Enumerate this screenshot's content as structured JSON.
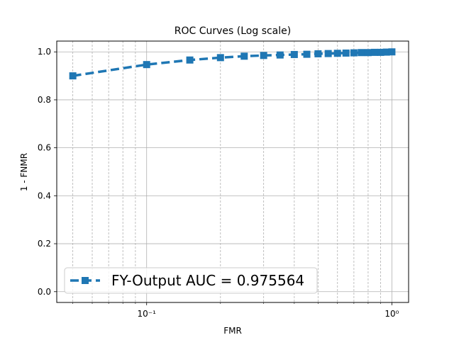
{
  "chart_data": {
    "type": "line",
    "title": "ROC Curves (Log scale)",
    "xlabel": "FMR",
    "ylabel": "1 - FNMR",
    "xscale": "log",
    "xlim": [
      0.043,
      1.17
    ],
    "ylim": [
      -0.045,
      1.045
    ],
    "yticks": [
      0.0,
      0.2,
      0.4,
      0.6,
      0.8,
      1.0
    ],
    "ytick_labels": [
      "0.0",
      "0.2",
      "0.4",
      "0.6",
      "0.8",
      "1.0"
    ],
    "xticks_major": [
      0.1,
      1
    ],
    "xtick_labels": [
      "10⁻¹",
      "10⁰"
    ],
    "xticks_minor": [
      0.05,
      0.06,
      0.07,
      0.08,
      0.09,
      0.2,
      0.3,
      0.4,
      0.5,
      0.6,
      0.7,
      0.8,
      0.9
    ],
    "grid": "on (dashed minor x-grid)",
    "legend_location": "lower-left",
    "series": [
      {
        "name": "FY-Output AUC = 0.975564",
        "color": "#1f77b4",
        "line_style": "dashed",
        "marker": "square",
        "x": [
          0.05,
          0.1,
          0.15,
          0.2,
          0.25,
          0.3,
          0.35,
          0.4,
          0.45,
          0.5,
          0.55,
          0.6,
          0.65,
          0.7,
          0.75,
          0.8,
          0.85,
          0.9,
          0.95,
          1.0
        ],
        "y": [
          0.9,
          0.947,
          0.966,
          0.976,
          0.982,
          0.985,
          0.987,
          0.989,
          0.99,
          0.992,
          0.993,
          0.994,
          0.995,
          0.996,
          0.997,
          0.997,
          0.998,
          0.998,
          0.999,
          1.0
        ]
      }
    ]
  }
}
